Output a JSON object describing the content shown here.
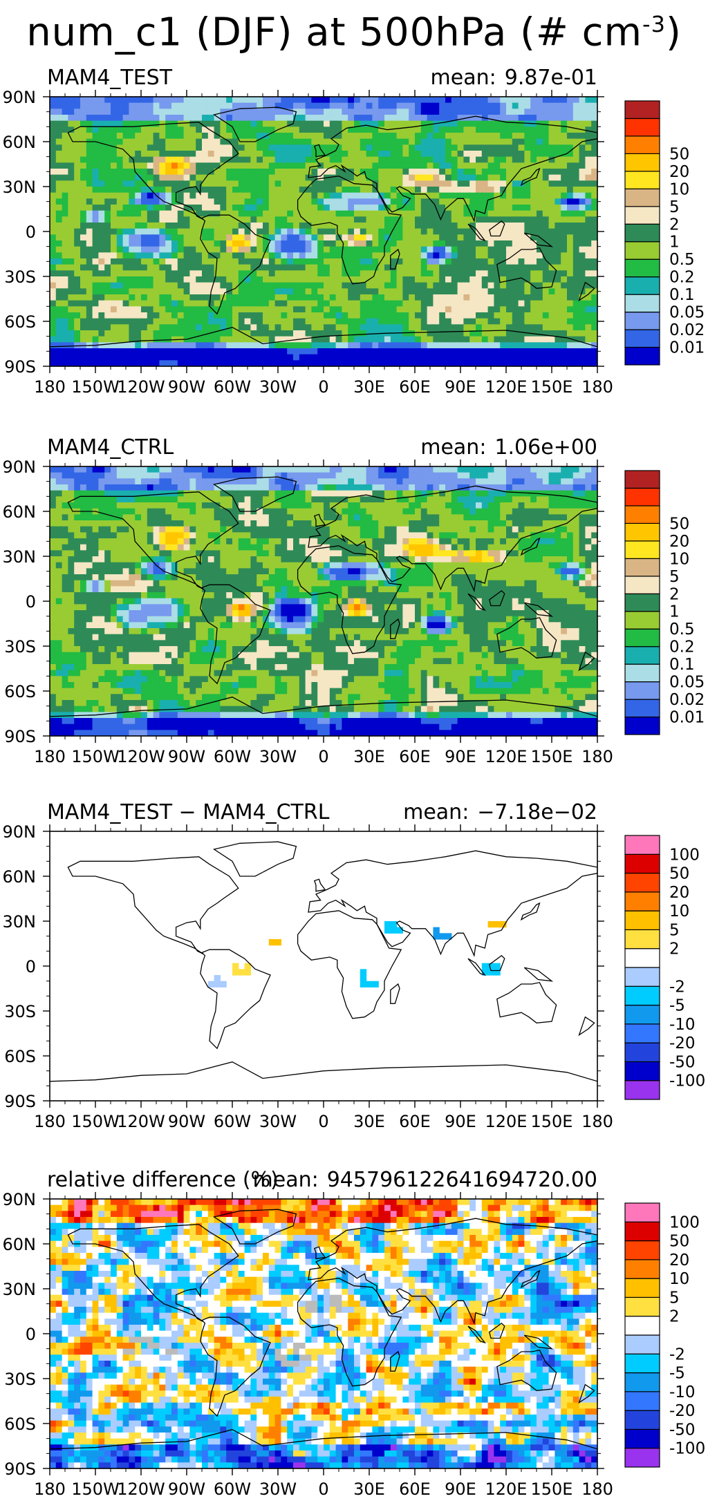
{
  "title_main": "num_c1 (DJF) at 500hPa (# cm",
  "title_sup": "-3",
  "title_close": ")",
  "lon_ticks": [
    "180",
    "150W",
    "120W",
    "90W",
    "60W",
    "30W",
    "0",
    "30E",
    "60E",
    "90E",
    "120E",
    "150E",
    "180"
  ],
  "lat_ticks": [
    "90N",
    "60N",
    "30N",
    "0",
    "30S",
    "60S",
    "90S"
  ],
  "colors": {
    "abs": [
      "#0000cc",
      "#3366e6",
      "#7799ee",
      "#aadde6",
      "#1aafaf",
      "#22bb44",
      "#99cc33",
      "#2e8b57",
      "#f5e6c4",
      "#d9b585",
      "#ffe620",
      "#ffc600",
      "#ff8000",
      "#ff3300",
      "#b22222"
    ],
    "diff": [
      "#9933ee",
      "#0000cc",
      "#2244dd",
      "#3377ff",
      "#1199ee",
      "#00ccff",
      "#aaccff",
      "#ffffff",
      "#ffe040",
      "#ffc000",
      "#ff8000",
      "#ff4400",
      "#dd0000",
      "#ff77bb"
    ],
    "missing": "#bbbbbb"
  },
  "chart_data": [
    {
      "type": "heatmap",
      "title": "MAM4_TEST",
      "mean_label": "mean:",
      "mean_value": "9.87e-01",
      "colorbar_labels": [
        "0.01",
        "0.02",
        "0.05",
        "0.1",
        "0.2",
        "0.5",
        "1",
        "2",
        "5",
        "10",
        "20",
        "50"
      ],
      "xlim": [
        -180,
        180
      ],
      "ylim": [
        -90,
        90
      ]
    },
    {
      "type": "heatmap",
      "title": "MAM4_CTRL",
      "mean_label": "mean:",
      "mean_value": "1.06e+00",
      "colorbar_labels": [
        "0.01",
        "0.02",
        "0.05",
        "0.1",
        "0.2",
        "0.5",
        "1",
        "2",
        "5",
        "10",
        "20",
        "50"
      ],
      "xlim": [
        -180,
        180
      ],
      "ylim": [
        -90,
        90
      ]
    },
    {
      "type": "heatmap",
      "title": "MAM4_TEST − MAM4_CTRL",
      "mean_label": "mean:",
      "mean_value": "−7.18e−02",
      "colorbar_labels": [
        "-100",
        "-50",
        "-20",
        "-10",
        "-5",
        "-2",
        "2",
        "5",
        "10",
        "20",
        "50",
        "100"
      ],
      "xlim": [
        -180,
        180
      ],
      "ylim": [
        -90,
        90
      ]
    },
    {
      "type": "heatmap",
      "title": "relative difference (%)",
      "mean_label": "mean:",
      "mean_value": "945796122641694720.00",
      "colorbar_labels": [
        "-100",
        "-50",
        "-20",
        "-10",
        "-5",
        "-2",
        "2",
        "5",
        "10",
        "20",
        "50",
        "100"
      ],
      "xlim": [
        -180,
        180
      ],
      "ylim": [
        -90,
        90
      ]
    }
  ]
}
